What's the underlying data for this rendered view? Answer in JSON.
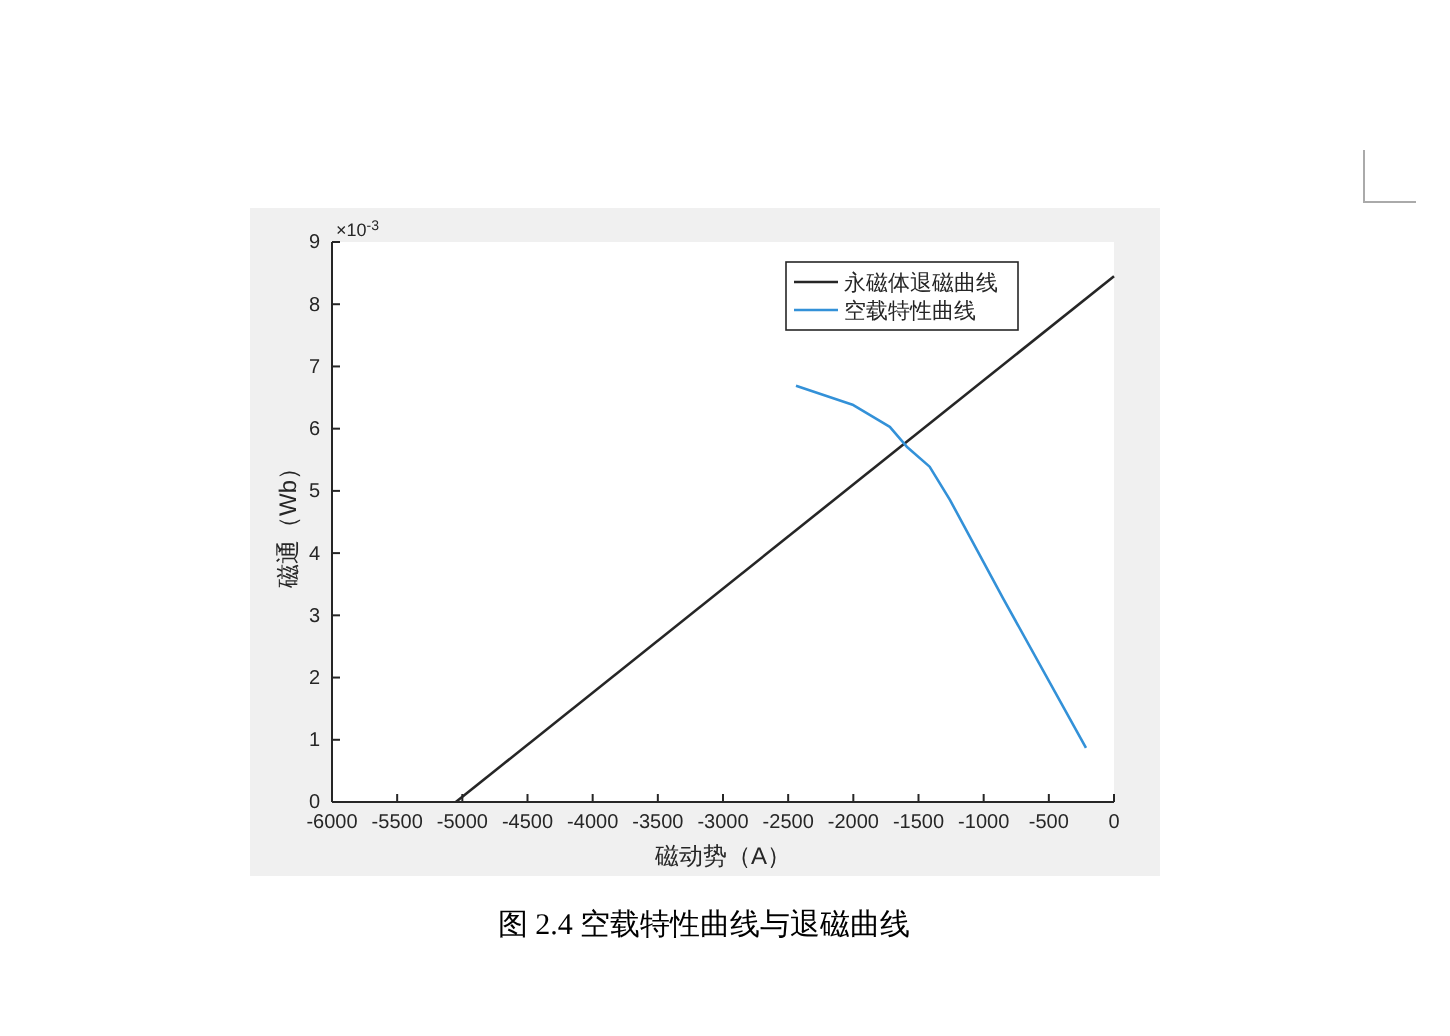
{
  "chart_data": {
    "type": "line",
    "title": "图 2.4  空载特性曲线与退磁曲线",
    "xlabel": "磁动势（A）",
    "ylabel": "磁通（Wb）",
    "annotations": [
      "×10$^{-3}$"
    ],
    "xlim": [
      -6000,
      0
    ],
    "xticks": [
      -6000,
      -5500,
      -5000,
      -4500,
      -4000,
      -3500,
      -3000,
      -2500,
      -2000,
      -1500,
      -1000,
      -500,
      0
    ],
    "ylim": [
      0,
      9
    ],
    "yticks": [
      0,
      1,
      2,
      3,
      4,
      5,
      6,
      7,
      8,
      9
    ],
    "grid": false,
    "legend": "top right",
    "line_style": "solid",
    "marker": "none",
    "series": [
      {
        "name": "永磁体退磁曲线",
        "color": "#262626",
        "x": [
          -5050,
          0
        ],
        "values": [
          0,
          8.45
        ]
      },
      {
        "name": "空载特性曲线",
        "color": "#3391d8",
        "x": [
          -2440,
          -2000,
          -1720,
          -1590,
          -1415,
          -1260,
          -850,
          -215
        ],
        "values": [
          6.69,
          6.38,
          6.03,
          5.71,
          5.39,
          4.86,
          3.27,
          0.87
        ]
      }
    ]
  }
}
